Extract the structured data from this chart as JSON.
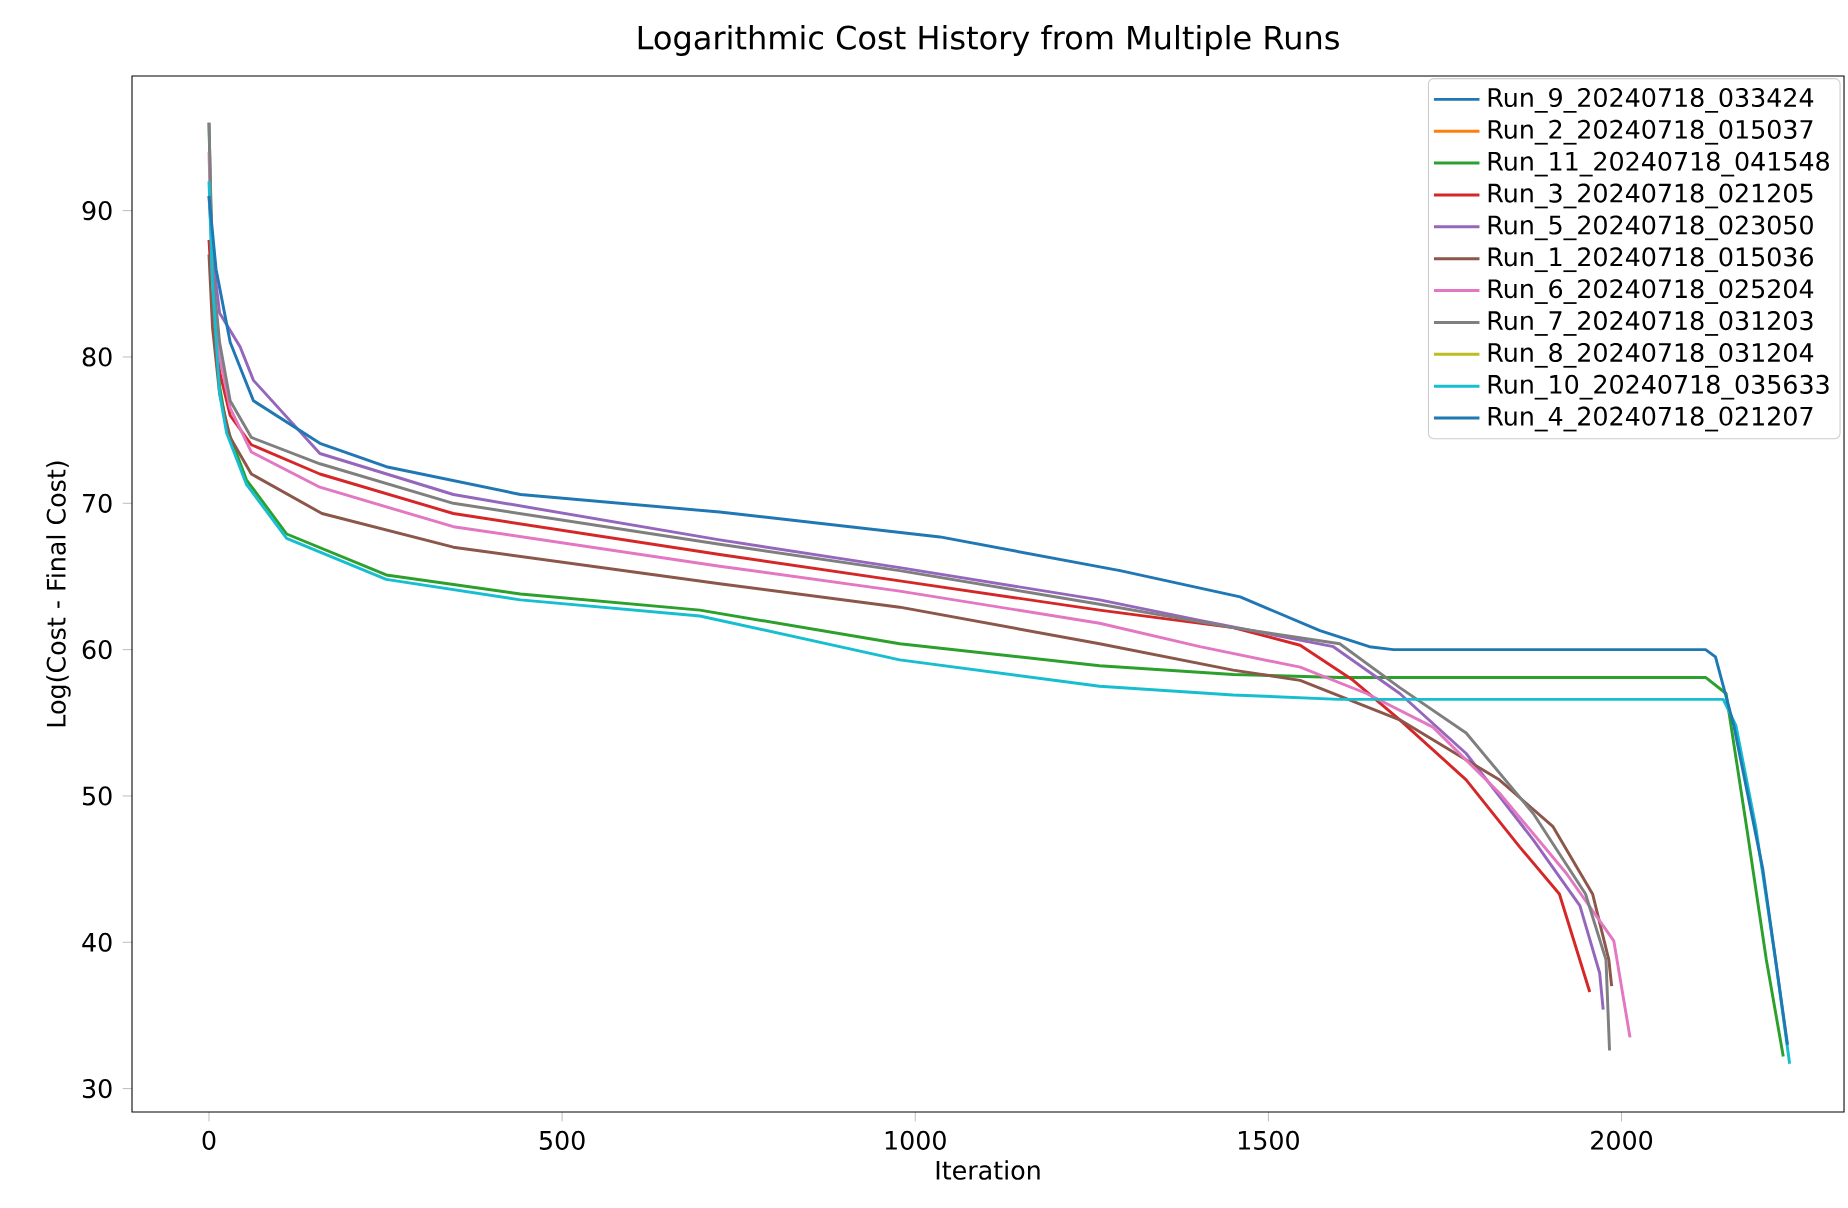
{
  "chart_data": {
    "type": "line",
    "title": "Logarithmic Cost History from Multiple Runs",
    "xlabel": "Iteration",
    "ylabel": "Log(Cost - Final Cost)",
    "xlim": [
      -109,
      2315
    ],
    "ylim": [
      28.4,
      99.2
    ],
    "xticks": [
      0,
      500,
      1000,
      1500,
      2000
    ],
    "yticks": [
      30,
      40,
      50,
      60,
      70,
      80,
      90
    ],
    "grid": false,
    "legend": "top right",
    "line_style": "solid",
    "series": [
      {
        "name": "Run_9_20240718_033424",
        "color": "#1f77b4"
      },
      {
        "name": "Run_2_20240718_015037",
        "color": "#ff7f0e"
      },
      {
        "name": "Run_11_20240718_041548",
        "color": "#2ca02c",
        "x": [
          0,
          5,
          15,
          25,
          53,
          110,
          251,
          441,
          695,
          978,
          1261,
          1450,
          1600,
          1800,
          2000,
          2119,
          2148,
          2177,
          2205,
          2229
        ],
        "values": [
          96,
          85,
          78,
          75.2,
          71.6,
          67.9,
          65.1,
          63.8,
          62.7,
          60.4,
          58.9,
          58.3,
          58.1,
          58.1,
          58.1,
          58.1,
          57,
          47.9,
          38.8,
          32.2
        ]
      },
      {
        "name": "Run_3_20240718_021205",
        "color": "#d62728",
        "x": [
          0,
          5,
          15,
          30,
          60,
          157,
          346,
          723,
          978,
          1261,
          1450,
          1545,
          1620,
          1686,
          1780,
          1856,
          1912,
          1955
        ],
        "values": [
          88,
          84,
          79,
          76,
          74,
          72,
          69.3,
          66.5,
          64.7,
          62.7,
          61.5,
          60.3,
          57.9,
          55.2,
          51.1,
          46.5,
          43.3,
          36.6
        ]
      },
      {
        "name": "Run_5_20240718_023050",
        "color": "#9467bd",
        "x": [
          0,
          5,
          15,
          44,
          63,
          157,
          346,
          723,
          978,
          1261,
          1403,
          1592,
          1686,
          1780,
          1875,
          1941,
          1969,
          1974
        ],
        "values": [
          91,
          87,
          83,
          80.7,
          78.4,
          73.4,
          70.6,
          67.5,
          65.6,
          63.4,
          62,
          60.2,
          57,
          52.9,
          47,
          42.5,
          37.9,
          35.4
        ]
      },
      {
        "name": "Run_1_20240718_015036",
        "color": "#8c564b",
        "x": [
          0,
          5,
          15,
          30,
          60,
          160,
          346,
          723,
          978,
          1261,
          1450,
          1545,
          1686,
          1827,
          1903,
          1959,
          1982,
          1986
        ],
        "values": [
          87,
          82,
          77.5,
          74.5,
          72,
          69.3,
          67,
          64.5,
          62.9,
          60.4,
          58.6,
          57.9,
          55.2,
          51.1,
          47.9,
          43.3,
          38.8,
          37
        ]
      },
      {
        "name": "Run_6_20240718_025204",
        "color": "#e377c2",
        "x": [
          0,
          5,
          15,
          30,
          60,
          157,
          346,
          723,
          978,
          1261,
          1403,
          1545,
          1639,
          1733,
          1827,
          1922,
          1989,
          2012
        ],
        "values": [
          94,
          85,
          80,
          76.5,
          73.5,
          71.1,
          68.4,
          65.7,
          64,
          61.8,
          60.2,
          58.8,
          57,
          54.7,
          50.2,
          44.7,
          40.1,
          33.5
        ]
      },
      {
        "name": "Run_7_20240718_031203",
        "color": "#7f7f7f",
        "x": [
          0,
          5,
          15,
          30,
          60,
          157,
          346,
          723,
          978,
          1261,
          1450,
          1601,
          1686,
          1780,
          1875,
          1949,
          1978,
          1983
        ],
        "values": [
          96,
          86,
          81,
          77,
          74.5,
          72.7,
          70,
          67.2,
          65.4,
          63.1,
          61.5,
          60.4,
          57.4,
          54.3,
          48.8,
          43.3,
          38.8,
          32.6
        ]
      },
      {
        "name": "Run_8_20240718_031204",
        "color": "#bcbd22"
      },
      {
        "name": "Run_10_20240718_035633",
        "color": "#17becf",
        "x": [
          0,
          5,
          15,
          25,
          53,
          110,
          251,
          441,
          695,
          978,
          1261,
          1450,
          1600,
          1800,
          2000,
          2144,
          2162,
          2190,
          2218,
          2238
        ],
        "values": [
          92,
          85,
          77.5,
          74.8,
          71.3,
          67.6,
          64.8,
          63.4,
          62.3,
          59.3,
          57.5,
          56.9,
          56.6,
          56.6,
          56.6,
          56.6,
          54.8,
          47.9,
          38.8,
          31.7
        ]
      },
      {
        "name": "Run_4_20240718_021207",
        "color": "#1f77b4",
        "x": [
          0,
          10,
          30,
          44,
          63,
          157,
          251,
          441,
          723,
          1035,
          1290,
          1460,
          1573,
          1643,
          1677,
          1900,
          2119,
          2133,
          2159,
          2200,
          2235
        ],
        "values": [
          91,
          86,
          81,
          79.3,
          77,
          74.1,
          72.5,
          70.6,
          69.4,
          67.7,
          65.4,
          63.6,
          61.3,
          60.2,
          60,
          60,
          60,
          59.5,
          54.8,
          45,
          33
        ]
      }
    ]
  }
}
